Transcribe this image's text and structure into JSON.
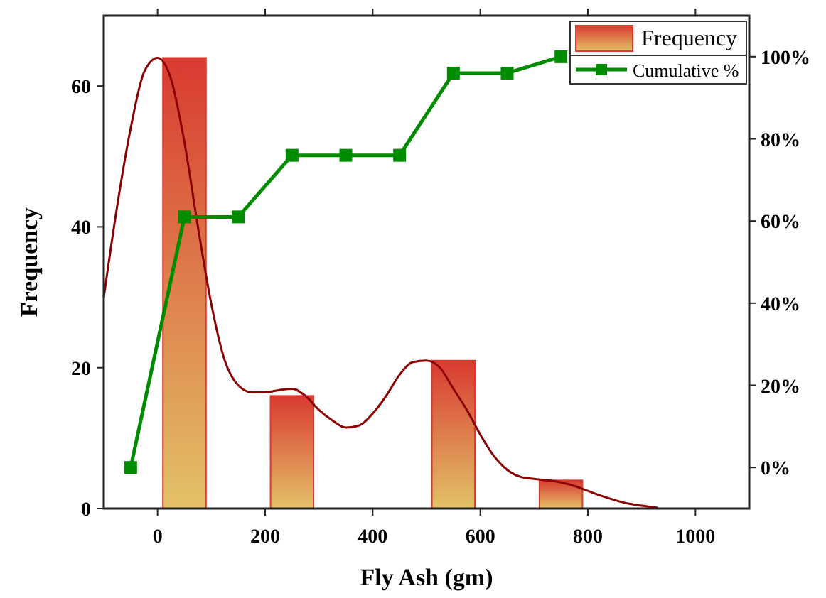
{
  "chart_data": {
    "type": "bar",
    "xlabel": "Fly Ash (gm)",
    "ylabel": "Frequency",
    "xlim": [
      -100,
      1100
    ],
    "xticks": [
      0,
      200,
      400,
      600,
      800,
      1000
    ],
    "ylim": [
      0,
      70
    ],
    "yticks": [
      0,
      20,
      40,
      60
    ],
    "y2lim": [
      -10,
      110
    ],
    "y2ticks": [
      {
        "value": 0,
        "label": "0%"
      },
      {
        "value": 20,
        "label": "20%"
      },
      {
        "value": 40,
        "label": "40%"
      },
      {
        "value": 60,
        "label": "60%"
      },
      {
        "value": 80,
        "label": "80%"
      },
      {
        "value": 100,
        "label": "100%"
      }
    ],
    "legend": "top right",
    "grid": false,
    "series": [
      {
        "name": "Frequency",
        "color": "#d93a30",
        "x": [
          50,
          250,
          550,
          750
        ],
        "values": [
          64,
          16,
          21,
          4
        ]
      },
      {
        "type": "line",
        "color": "#8b0000",
        "marker": "none",
        "x": [
          -100,
          -75,
          -50,
          -25,
          0,
          25,
          50,
          75,
          100,
          125,
          150,
          175,
          200,
          225,
          250,
          275,
          300,
          325,
          350,
          375,
          400,
          425,
          450,
          475,
          500,
          525,
          550,
          575,
          600,
          625,
          650,
          675,
          700,
          725,
          750,
          775,
          800,
          825,
          850,
          875,
          900,
          930
        ],
        "values": [
          30,
          43,
          54,
          62,
          64,
          61,
          52,
          40,
          29,
          21,
          17.5,
          16.5,
          16.5,
          16.8,
          17,
          16,
          14,
          12.5,
          11.5,
          11.8,
          13.5,
          16,
          19,
          20.8,
          21,
          20,
          17,
          14,
          10.5,
          7.5,
          5.5,
          4.5,
          4.2,
          4,
          3.7,
          3.2,
          2.5,
          1.8,
          1.2,
          0.7,
          0.4,
          0.1
        ]
      },
      {
        "type": "line",
        "name": "Cumulative %",
        "axis": "y2",
        "color": "#008c00",
        "marker": "square",
        "x": [
          -50,
          50,
          150,
          250,
          350,
          450,
          550,
          650,
          750
        ],
        "values": [
          0,
          61,
          61,
          76,
          76,
          76,
          96,
          96,
          100
        ]
      }
    ]
  }
}
